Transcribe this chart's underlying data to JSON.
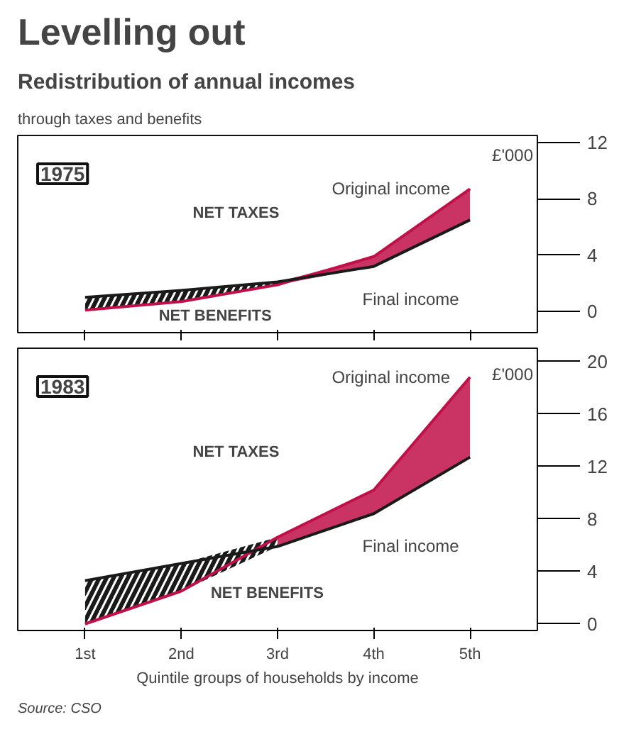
{
  "chart_data": [
    {
      "type": "line",
      "title": "Levelling out",
      "subtitle": "Redistribution of annual incomes",
      "legend_title": "1975",
      "ylabel": "£'000",
      "categories": [
        null,
        null,
        null,
        null,
        null
      ],
      "series": [
        {
          "name": "Original income",
          "color": "#c0104a",
          "values": [
            0.1,
            0.7,
            1.9,
            3.9,
            8.7
          ],
          "lower": [
            null,
            null,
            1.9,
            3.2,
            6.5
          ],
          "upper": [
            null,
            null,
            2.1,
            3.9,
            8.7
          ]
        },
        {
          "name": "Final income",
          "color": "#1a1a1a",
          "values": [
            1.0,
            1.5,
            2.1,
            3.2,
            6.5
          ],
          "lower": [
            0.1,
            0.7,
            1.9,
            null,
            null
          ],
          "upper": [
            1.0,
            1.5,
            2.1,
            null,
            null
          ]
        }
      ],
      "ylim": [
        -1.5,
        12.5
      ],
      "yticks": [
        0,
        4,
        8,
        12
      ],
      "tick_labels": "y",
      "grid": false,
      "annotations": [
        "through taxes and benefits",
        "NET TAXES",
        "NET BENEFITS"
      ]
    },
    {
      "type": "line",
      "legend_title": "1983",
      "ylabel": "£'000",
      "xlabel": "Quintile groups of households by income",
      "categories": [
        "1st",
        "2nd",
        "3rd",
        "4th",
        "5th"
      ],
      "series": [
        {
          "name": "Original income",
          "color": "#c0104a",
          "values": [
            0.0,
            2.5,
            6.6,
            10.2,
            18.8
          ],
          "lower": [
            null,
            null,
            5.9,
            8.4,
            12.7
          ],
          "upper": [
            null,
            null,
            6.6,
            10.2,
            18.8
          ]
        },
        {
          "name": "Final income",
          "color": "#1a1a1a",
          "values": [
            3.3,
            4.6,
            5.9,
            8.4,
            12.7
          ],
          "lower": [
            0.0,
            2.5,
            5.9,
            null,
            null
          ],
          "upper": [
            3.3,
            4.6,
            6.6,
            null,
            null
          ]
        }
      ],
      "ylim": [
        -0.5,
        21
      ],
      "yticks": [
        0,
        4,
        8,
        12,
        16,
        20
      ],
      "grid": false,
      "annotations": [
        "NET TAXES",
        "NET BENEFITS",
        "Source: CSO"
      ]
    }
  ]
}
